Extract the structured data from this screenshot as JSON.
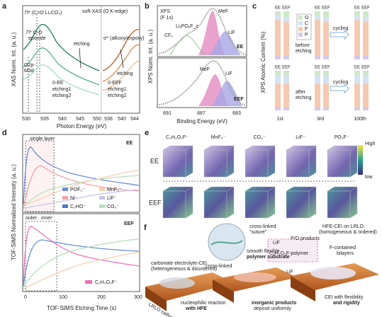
{
  "a": {
    "label": "a",
    "title": "soft-XAS (O K-edge)",
    "pi_co": "Π* (C=O  Li₂CO₃)",
    "pi_epoxide": [
      "Π* C-O",
      "epoxide"
    ],
    "o2p": [
      "O2p-",
      "M3d"
    ],
    "sigma": "σ* (alkoxy/expoxy)",
    "ee_legend": [
      "0-EE",
      "etching1",
      "etching2"
    ],
    "eef_legend": [
      "0-EEF",
      "etching1",
      "etching2"
    ],
    "etching": [
      "etching",
      "etching"
    ],
    "xticks_left": [
      "530",
      "535",
      "540",
      "545",
      "550"
    ],
    "xticks_right": [
      "536",
      "540",
      "544"
    ],
    "xlabel": "Photon Energy (eV)",
    "ylabel": "XAS Norm. Int. (a. u.)"
  },
  "b": {
    "label": "b",
    "title": [
      "XPS",
      "(F 1s)"
    ],
    "peaks_top": [
      "LiₓPOᵧF_z",
      "CF₂",
      "MeF",
      "LiF"
    ],
    "peaks_bottom": [
      "MeF",
      "LiF"
    ],
    "panel_top": "EE",
    "panel_bottom": "EEF",
    "xticks": [
      "691",
      "687",
      "683"
    ],
    "xlabel": "Binding Energy (eV)",
    "ylabel": "XPS Norm. Int. (a. u.)"
  },
  "c": {
    "label": "c",
    "ylabel": "XPS Atomic Content (%)",
    "legend": [
      "O",
      "C",
      "F",
      "P"
    ],
    "before": [
      "before",
      "etching"
    ],
    "after": [
      "after",
      "etching"
    ],
    "cycling": [
      "cycling",
      "cycling"
    ],
    "bar_labels": [
      "EE",
      "EEF",
      "EE",
      "EEF",
      "EE",
      "EEF",
      "EE",
      "EEF",
      "EE",
      "EEF",
      "EE",
      "EEF"
    ],
    "groups": [
      "1st",
      "3rd",
      "100th"
    ]
  },
  "d": {
    "label": "d",
    "single_layer": "single layer",
    "panel_top": "EE",
    "legend_top": [
      "POF₂⁻",
      "MnF₃⁻",
      "Ni⁻",
      "LiF⁻",
      "C₂HO⁻",
      "CO₃⁻"
    ],
    "outer": "outer",
    "inner": "inner",
    "panel_bottom": "EEF",
    "legend_bottom": "C₂H₂O₂F⁻",
    "xticks": [
      "0",
      "100",
      "200",
      "300"
    ],
    "xlabel": "TOF-SIMS Etching Time (s)",
    "ylabel": "TOF-SIMS Normalized Intensity (a. u.)"
  },
  "e": {
    "label": "e",
    "species": [
      "C₂H₂O₂F⁻",
      "MnF₃⁻",
      "CO₃⁻",
      "LiF⁻",
      "PO₂F⁻"
    ],
    "rows": [
      "EE",
      "EEF"
    ],
    "scale": [
      "High",
      "low"
    ]
  },
  "f": {
    "label": "f",
    "texts": [
      "cross-linked",
      "“suture”",
      "HFE-CEI on LRLO",
      "(homogeneous & ordered)",
      "smooth flexible",
      "polymer substrate",
      "LiF",
      "P/O products",
      "C₂H₂O₂F-polymer",
      "F-contained",
      "bilayers",
      "carbonate electrolyte-CEI",
      "(heterogeneous & disordered)",
      "cross-linked",
      "LiF",
      "nucleophilic reaction",
      "with HFE",
      "inorganic products",
      "deposit uniformly",
      "CEI with flexibility",
      "and rigidity",
      "LRLO cathode"
    ]
  }
}
